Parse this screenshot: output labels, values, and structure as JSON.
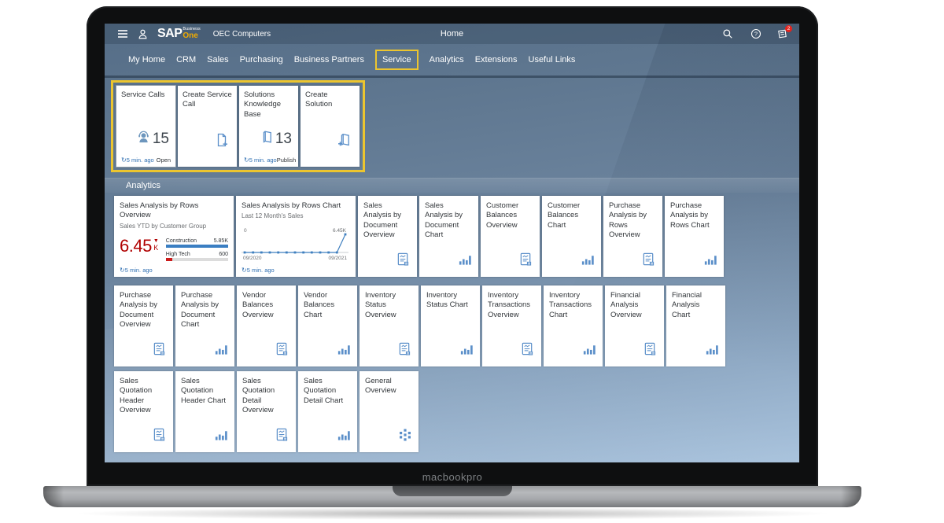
{
  "device": {
    "label": "macbookpro"
  },
  "colors": {
    "accent_yellow": "#ecc52f",
    "icon_blue": "#5b8fc9",
    "kpi_red": "#b00000",
    "refresh_blue": "#2f6fb2",
    "bar_blue": "#3a7ec2",
    "bar_red": "#cc1a1a",
    "logo_gold": "#f0ab00"
  },
  "topbar": {
    "company": "OEC Computers",
    "page_title": "Home",
    "logo": {
      "sap": "SAP",
      "business": "Business",
      "one": "One"
    },
    "icons": [
      "menu-icon",
      "user-icon",
      "search-icon",
      "help-icon",
      "notifications-icon"
    ],
    "notifications_count": "2"
  },
  "tabs": [
    {
      "label": "My Home"
    },
    {
      "label": "CRM"
    },
    {
      "label": "Sales"
    },
    {
      "label": "Purchasing"
    },
    {
      "label": "Business Partners"
    },
    {
      "label": "Service",
      "highlighted": true
    },
    {
      "label": "Analytics"
    },
    {
      "label": "Extensions"
    },
    {
      "label": "Useful Links"
    }
  ],
  "service_tiles": [
    {
      "title": "Service Calls",
      "icon": "support-person",
      "value": "15",
      "refresh": "5 min. ago",
      "action": "Open",
      "selected": true
    },
    {
      "title": "Create Service Call",
      "icon": "doc-plus"
    },
    {
      "title": "Solutions Knowledge Base",
      "icon": "book",
      "value": "13",
      "refresh": "5 min. ago",
      "action": "Publish"
    },
    {
      "title": "Create Solution",
      "icon": "book-plus"
    }
  ],
  "analytics": {
    "section_title": "Analytics",
    "kpi_tile": {
      "title": "Sales Analysis by Rows Overview",
      "subtitle": "Sales YTD by Customer Group",
      "value": "6.45",
      "unit": "K",
      "trend": "down",
      "refresh": "5 min. ago",
      "bars": [
        {
          "label": "Construction",
          "value": "5.85K",
          "style": "blue"
        },
        {
          "label": "High Tech",
          "value": "600",
          "style": "gray-red"
        }
      ]
    },
    "chart_tile": {
      "title": "Sales Analysis by Rows Chart",
      "subtitle": "Last 12 Month's Sales",
      "refresh": "5 min. ago",
      "chart": {
        "type": "line",
        "min_label": "0",
        "max_label": "6.45K",
        "x_start": "09/2020",
        "x_end": "09/2021",
        "points": [
          0,
          0,
          0,
          0,
          0,
          0,
          0,
          0,
          0,
          0,
          0,
          0,
          6450
        ],
        "ymax": 6450
      }
    },
    "rows": [
      {
        "tiles": [
          {
            "title": "Sales Analysis by Document Overview",
            "icon": "report"
          },
          {
            "title": "Sales Analysis by Document Chart",
            "icon": "bars"
          },
          {
            "title": "Customer Balances Overview",
            "icon": "report"
          },
          {
            "title": "Customer Balances Chart",
            "icon": "bars"
          },
          {
            "title": "Purchase Analysis by Rows Overview",
            "icon": "report"
          },
          {
            "title": "Purchase Analysis by Rows Chart",
            "icon": "bars"
          }
        ]
      },
      {
        "tiles": [
          {
            "title": "Purchase Analysis by Document Overview",
            "icon": "report"
          },
          {
            "title": "Purchase Analysis by Document Chart",
            "icon": "bars"
          },
          {
            "title": "Vendor Balances Overview",
            "icon": "report"
          },
          {
            "title": "Vendor Balances Chart",
            "icon": "bars"
          },
          {
            "title": "Inventory Status Overview",
            "icon": "report"
          },
          {
            "title": "Inventory Status Chart",
            "icon": "bars"
          },
          {
            "title": "Inventory Transactions Overview",
            "icon": "report"
          },
          {
            "title": "Inventory Transactions Chart",
            "icon": "bars"
          },
          {
            "title": "Financial Analysis Overview",
            "icon": "report"
          },
          {
            "title": "Financial Analysis Chart",
            "icon": "bars"
          }
        ]
      },
      {
        "tiles": [
          {
            "title": "Sales Quotation Header Overview",
            "icon": "report"
          },
          {
            "title": "Sales Quotation Header Chart",
            "icon": "bars"
          },
          {
            "title": "Sales Quotation Detail Overview",
            "icon": "report"
          },
          {
            "title": "Sales Quotation Detail Chart",
            "icon": "bars"
          },
          {
            "title": "General Overview",
            "icon": "grid"
          }
        ]
      }
    ]
  }
}
